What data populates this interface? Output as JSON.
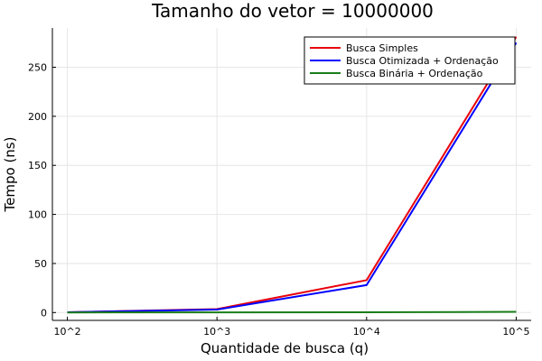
{
  "chart_data": {
    "type": "line",
    "title": "Tamanho do vetor = 10000000",
    "xlabel": "Quantidade de busca (q)",
    "ylabel": "Tempo (ns)",
    "x": [
      2,
      3,
      4,
      5
    ],
    "x_scale": "log10",
    "x_tick_labels": [
      "10^2",
      "10^3",
      "10^4",
      "10^5"
    ],
    "y_ticks": [
      0,
      50,
      100,
      150,
      200,
      250
    ],
    "xlim": [
      1.9,
      5.1
    ],
    "ylim": [
      -8,
      290
    ],
    "grid": true,
    "legend_position": "top-right",
    "series": [
      {
        "name": "Busca Simples",
        "color": "#e8000b",
        "values": [
          0.3,
          3.5,
          33,
          281
        ]
      },
      {
        "name": "Busca Otimizada + Ordenação",
        "color": "#0000ff",
        "values": [
          0.3,
          3.0,
          28,
          275
        ]
      },
      {
        "name": "Busca Binária + Ordenação",
        "color": "#1a7d1a",
        "values": [
          0.1,
          0.2,
          0.3,
          0.7
        ]
      }
    ]
  }
}
